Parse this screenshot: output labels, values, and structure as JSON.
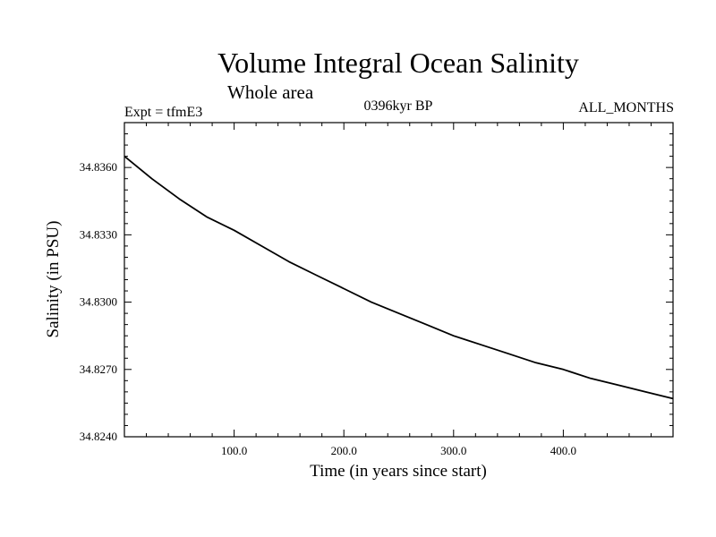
{
  "chart_data": {
    "type": "line",
    "title": "Volume Integral Ocean Salinity",
    "subtitle": "Whole area",
    "expt_label": "Expt = tfmE3",
    "period_label": "0396kyr BP",
    "months_label": "ALL_MONTHS",
    "xlabel": "Time (in years since start)",
    "ylabel": "Salinity (in PSU)",
    "xlim": [
      0,
      500
    ],
    "ylim": [
      34.824,
      34.838
    ],
    "x_ticks": [
      100,
      200,
      300,
      400
    ],
    "x_tick_labels": [
      "100.0",
      "200.0",
      "300.0",
      "400.0"
    ],
    "y_ticks": [
      34.824,
      34.827,
      34.83,
      34.833,
      34.836
    ],
    "y_tick_labels": [
      "34.8240",
      "34.8270",
      "34.8300",
      "34.8330",
      "34.8360"
    ],
    "series": [
      {
        "x": [
          0,
          25,
          50,
          75,
          100,
          125,
          150,
          175,
          200,
          225,
          250,
          275,
          300,
          325,
          350,
          375,
          400,
          425,
          450,
          475,
          500
        ],
        "values": [
          34.8365,
          34.8355,
          34.8346,
          34.8338,
          34.8332,
          34.8325,
          34.8318,
          34.8312,
          34.8306,
          34.83,
          34.8295,
          34.829,
          34.8285,
          34.8281,
          34.8277,
          34.8273,
          34.827,
          34.8266,
          34.8263,
          34.826,
          34.8257
        ],
        "color": "#000000"
      }
    ],
    "grid": false
  }
}
